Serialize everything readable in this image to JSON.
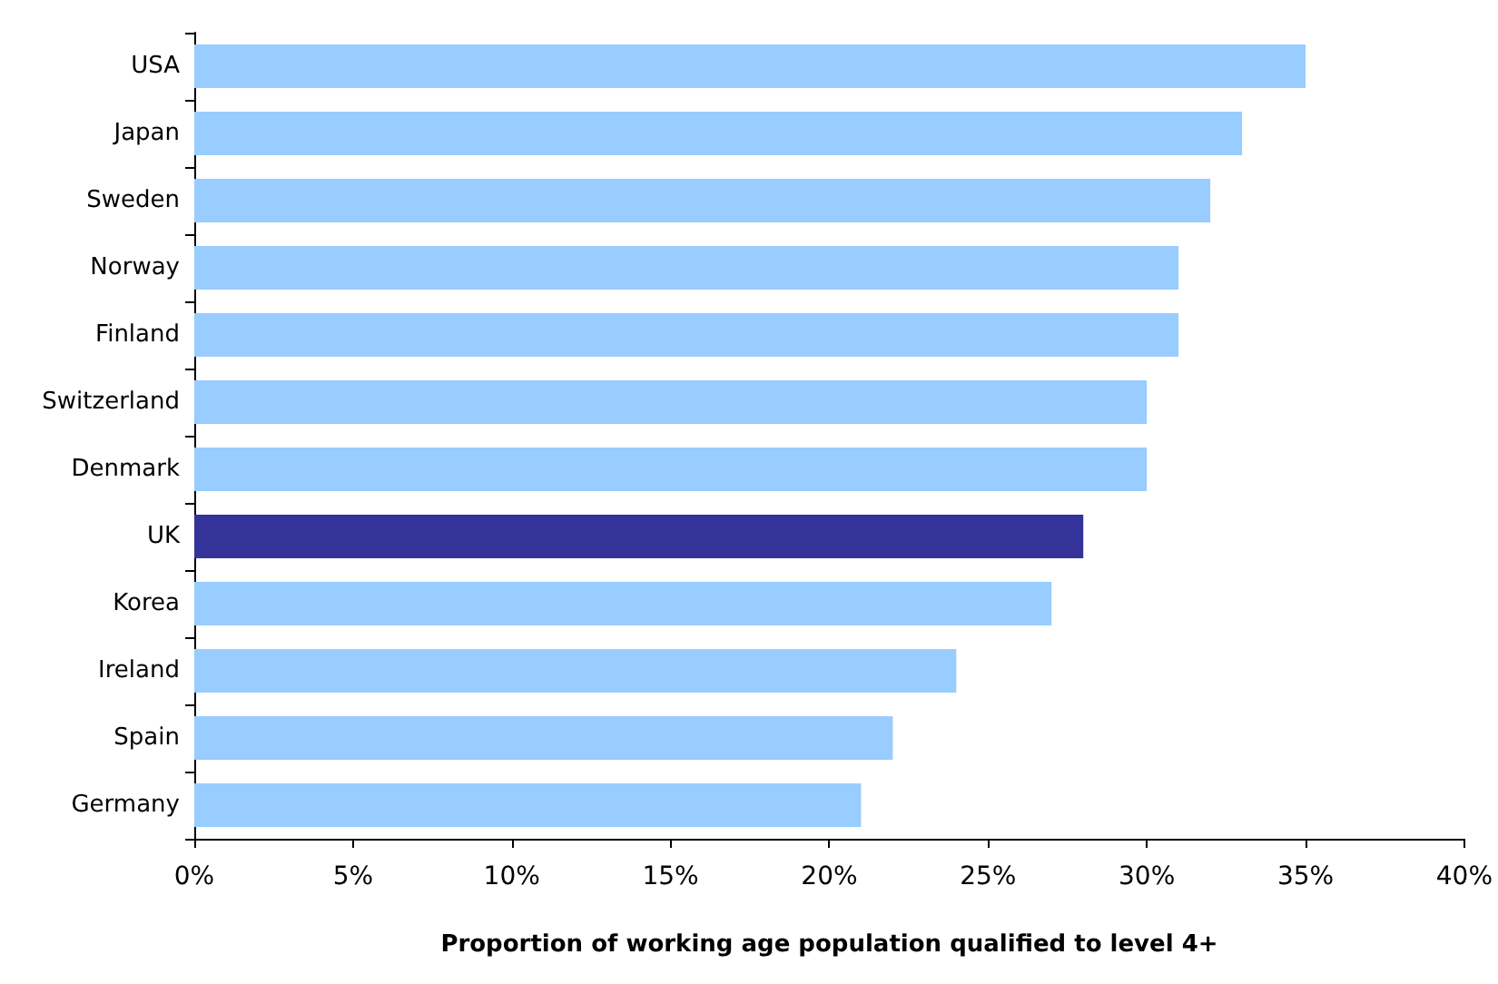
{
  "chart_data": {
    "type": "bar",
    "orientation": "horizontal",
    "xlabel": "Proportion of working age population qualified to level 4+",
    "categories": [
      "USA",
      "Japan",
      "Sweden",
      "Norway",
      "Finland",
      "Switzerland",
      "Denmark",
      "UK",
      "Korea",
      "Ireland",
      "Spain",
      "Germany"
    ],
    "values": [
      35,
      33,
      32,
      31,
      31,
      30,
      30,
      28,
      27,
      24,
      22,
      21
    ],
    "colors": [
      "#99ccff",
      "#99ccff",
      "#99ccff",
      "#99ccff",
      "#99ccff",
      "#99ccff",
      "#99ccff",
      "#333399",
      "#99ccff",
      "#99ccff",
      "#99ccff",
      "#99ccff"
    ],
    "xlim": [
      0,
      40
    ],
    "xticks": [
      {
        "value": 0,
        "label": "0%"
      },
      {
        "value": 5,
        "label": "5%"
      },
      {
        "value": 10,
        "label": "10%"
      },
      {
        "value": 15,
        "label": "15%"
      },
      {
        "value": 20,
        "label": "20%"
      },
      {
        "value": 25,
        "label": "25%"
      },
      {
        "value": 30,
        "label": "30%"
      },
      {
        "value": 35,
        "label": "35%"
      },
      {
        "value": 40,
        "label": "40%"
      }
    ],
    "grid": false
  }
}
